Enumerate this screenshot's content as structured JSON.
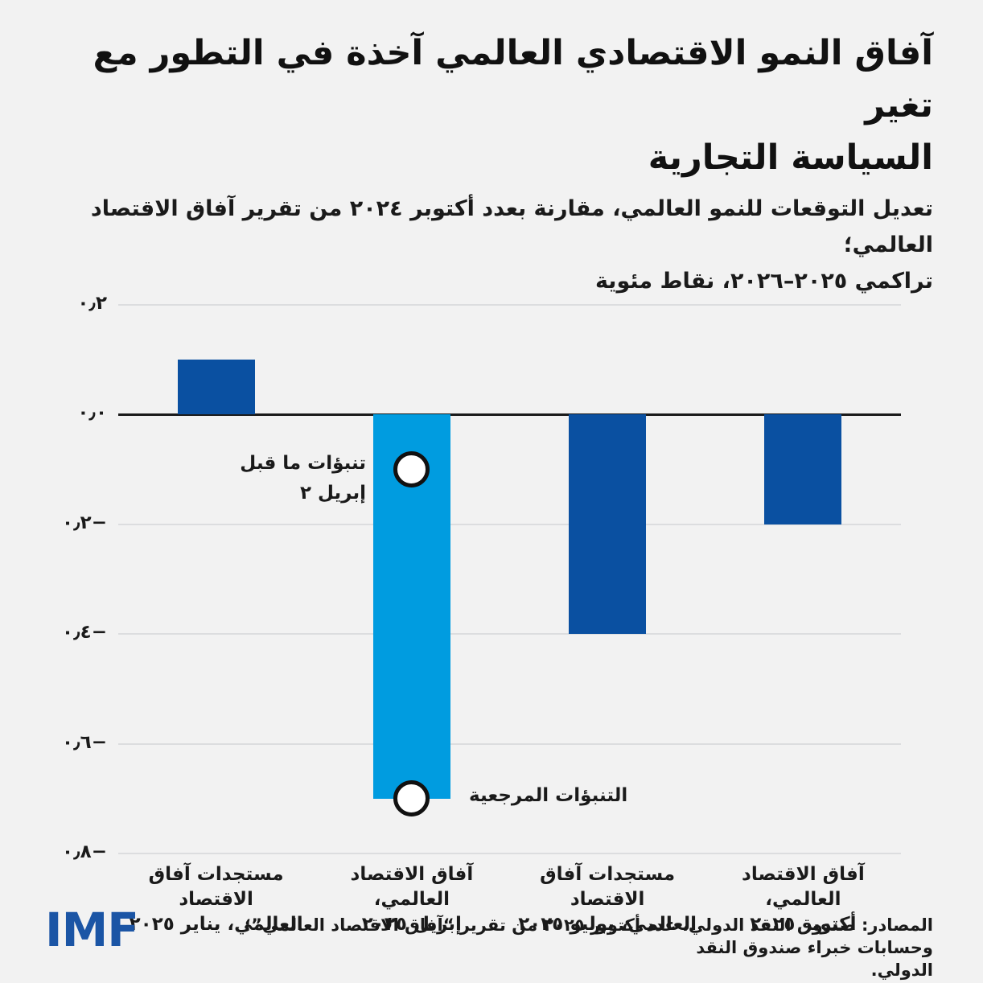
{
  "title": {
    "line1": "آفاق النمو الاقتصادي العالمي آخذة في التطور مع تغير",
    "line2": "السياسة التجارية",
    "full": "آفاق النمو الاقتصادي العالمي آخذة في التطور مع تغير السياسة التجارية"
  },
  "subtitle": {
    "line1": "تعديل التوقعات للنمو العالمي، مقارنة بعدد أكتوبر ٢٠٢٤ من تقرير آفاق الاقتصاد العالمي؛",
    "line2": "تراكمي ٢٠٢٥–٢٠٢٦، نقاط مئوية"
  },
  "chart_data": {
    "type": "bar",
    "orientation": "vertical",
    "title": "آفاق النمو الاقتصادي العالمي آخذة في التطور مع تغير السياسة التجارية",
    "subtitle": "تعديل التوقعات للنمو العالمي، مقارنة بعدد أكتوبر ٢٠٢٤ من تقرير آفاق الاقتصاد العالمي؛ تراكمي ٢٠٢٥–٢٠٢٦، نقاط مئوية",
    "unit": "نقاط مئوية",
    "grid": true,
    "legend": "none",
    "ylim": [
      -0.8,
      0.2
    ],
    "ytick_values": [
      0.2,
      0.0,
      -0.2,
      -0.4,
      -0.6,
      -0.8
    ],
    "ytick_labels": [
      "٠٫٢",
      "٠٫٠",
      "٠٫٢−",
      "٠٫٤−",
      "٠٫٦−",
      "٠٫٨−"
    ],
    "categories": [
      "مستجدات آفاق الاقتصاد العالمي، يناير ٢٠٢٥",
      "آفاق الاقتصاد العالمي، إبريل ٢٠٢٥",
      "مستجدات آفاق الاقتصاد العالمي، يوليو ٢٠٢٥",
      "آفاق الاقتصاد العالمي، أكتوبر ٢٠٢٥"
    ],
    "category_label_lines": [
      [
        "مستجدات آفاق الاقتصاد",
        "العالمي، يناير ٢٠٢٥"
      ],
      [
        "آفاق الاقتصاد العالمي،",
        "إبريل ٢٠٢٥"
      ],
      [
        "مستجدات آفاق الاقتصاد",
        "العالمي، يوليو ٢٠٢٥"
      ],
      [
        "آفاق الاقتصاد العالمي،",
        "أكتوبر ٢٠٢٥"
      ]
    ],
    "values": [
      0.1,
      -0.7,
      -0.4,
      -0.2
    ],
    "bar_colors": [
      "#0a50a1",
      "#009ce0",
      "#0a50a1",
      "#0a50a1"
    ],
    "annotations": [
      {
        "text": "تنبؤات ما قبل ٢ إبريل",
        "lines": [
          "تنبؤات ما قبل",
          "إبريل ٢"
        ],
        "marker_value": -0.1,
        "category_index": 1
      },
      {
        "text": "التنبؤات المرجعية",
        "lines": [
          "التنبؤات المرجعية"
        ],
        "marker_value": -0.7,
        "category_index": 1
      }
    ],
    "marker_style": {
      "fill": "#ffffff",
      "stroke": "#111111"
    }
  },
  "footer": {
    "logo_text": "IMF",
    "source_line1": "المصادر: صندوق النقد الدولي، عدد أكتوبر ٢٠٢٥ من تقرير “آفاق الاقتصاد العالمي”؛ وحسابات خبراء صندوق النقد",
    "source_line2": "الدولي."
  },
  "colors": {
    "background": "#f2f2f2",
    "text": "#1a1a1a",
    "dark_blue": "#0a50a1",
    "light_blue": "#009ce0",
    "imf_blue": "#1b55a5",
    "gridline": "#dcdddf",
    "zero_line": "#1a1a1a",
    "marker_fill": "#ffffff",
    "marker_stroke": "#111111"
  }
}
